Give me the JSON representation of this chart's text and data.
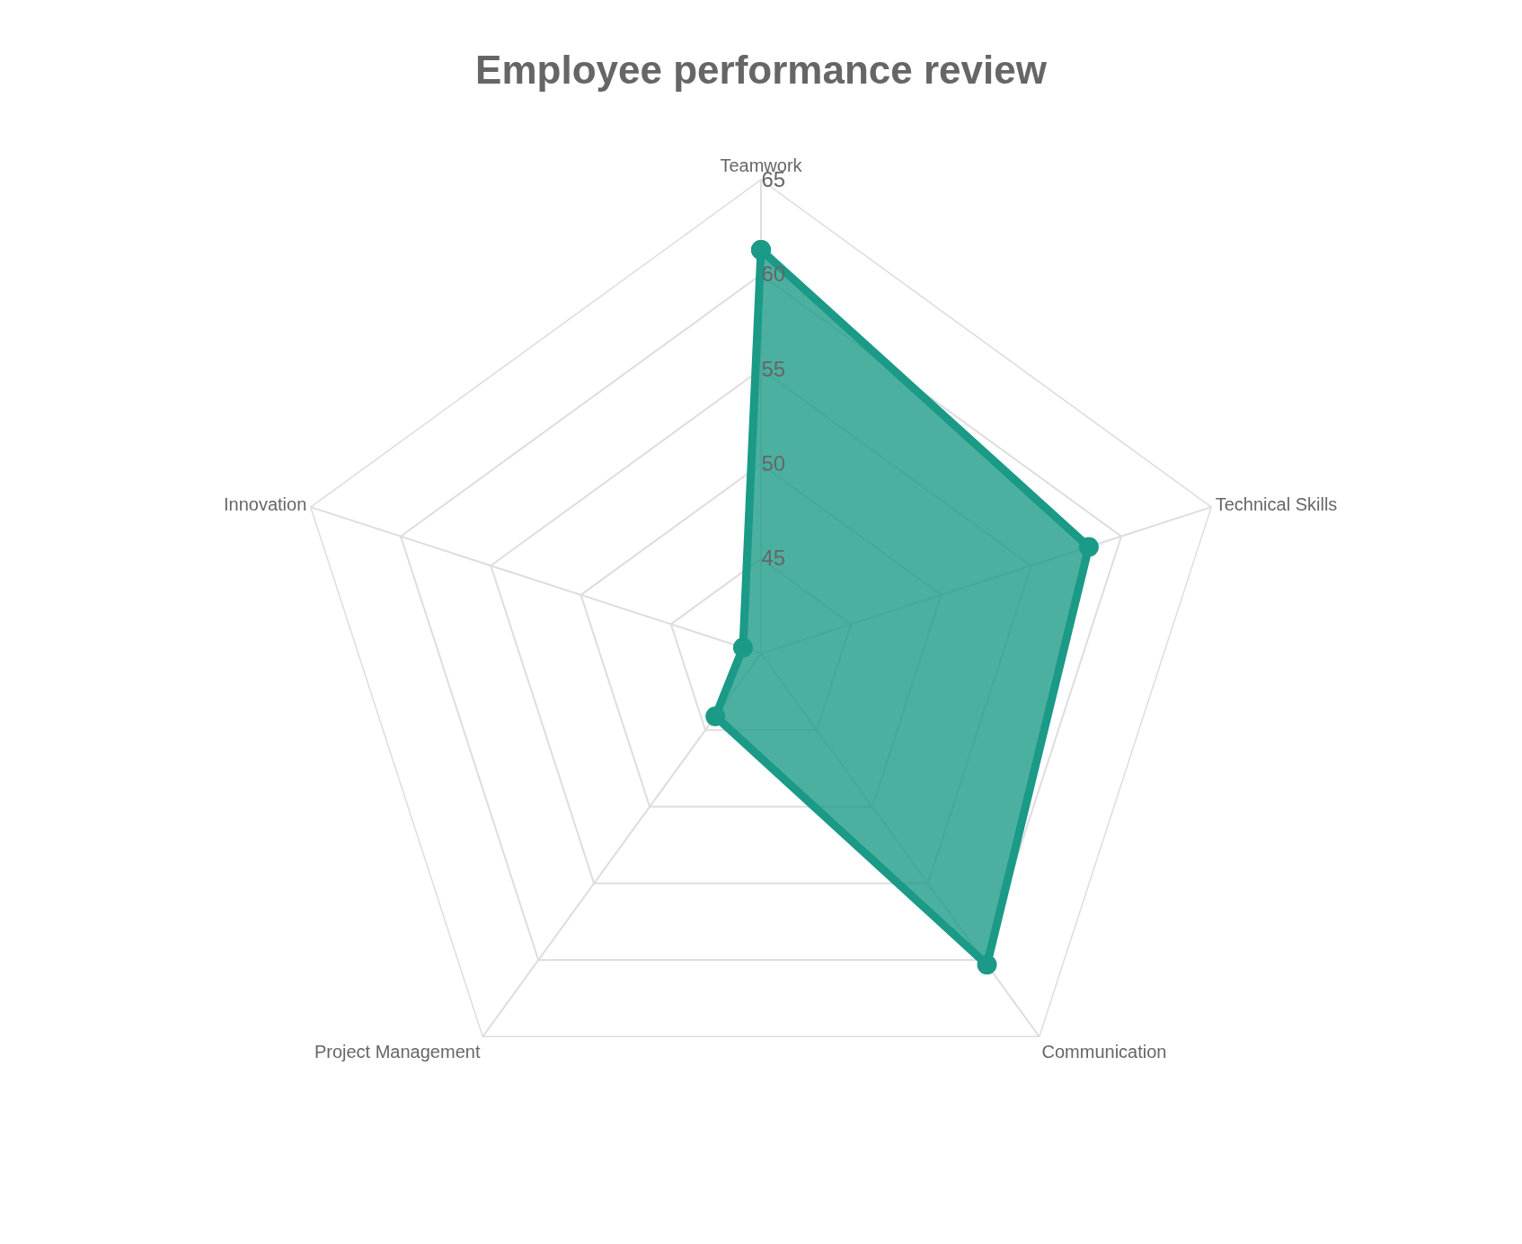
{
  "chart_data": {
    "type": "radar",
    "title": "Employee performance review",
    "categories": [
      "Teamwork",
      "Technical Skills",
      "Communication",
      "Project Management",
      "Innovation"
    ],
    "series": [
      {
        "color": "#1a9a87",
        "values": [
          61.3,
          58.2,
          60.3,
          44.1,
          41.0
        ]
      }
    ],
    "ylim": [
      40,
      65
    ],
    "yticks": [
      45,
      50,
      55,
      60,
      65
    ],
    "marker": "circle",
    "grid": true
  }
}
